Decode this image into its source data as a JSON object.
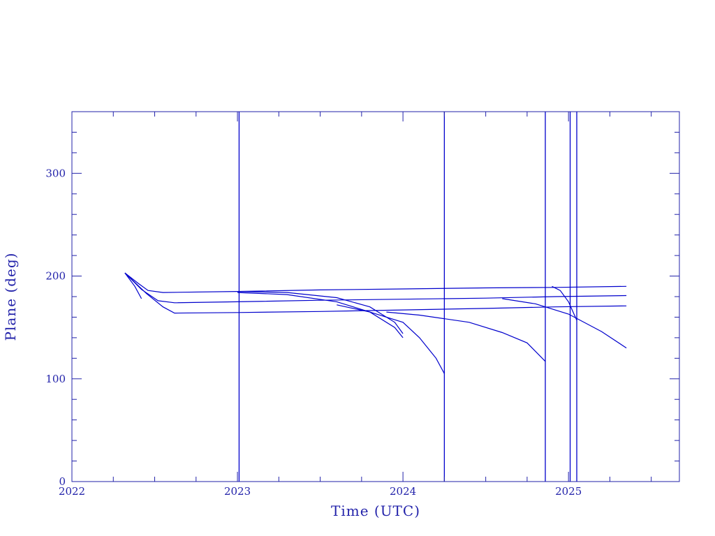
{
  "chart_data": {
    "type": "line",
    "title": "",
    "xlabel": "Time (UTC)",
    "ylabel": "Plane (deg)",
    "xlim": [
      2022.0,
      2025.67
    ],
    "ylim": [
      0,
      360
    ],
    "x_ticks": [
      2022,
      2023,
      2024,
      2025
    ],
    "y_ticks": [
      0,
      100,
      200,
      300
    ],
    "grid": false,
    "legend": "none",
    "color": "#0000cc",
    "vertical_lines_x": [
      2023.01,
      2024.25,
      2024.86,
      2025.01,
      2025.05
    ],
    "series": [
      {
        "x": [
          2022.32,
          2022.4,
          2022.46,
          2022.55,
          2023.0,
          2023.5,
          2024.0,
          2024.5,
          2024.92,
          2025.35
        ],
        "y": [
          203,
          193,
          186,
          184,
          185,
          186.5,
          187.5,
          188.5,
          189,
          190
        ]
      },
      {
        "x": [
          2022.32,
          2022.42,
          2022.52,
          2022.62,
          2023.0,
          2023.5,
          2024.0,
          2024.5,
          2024.92,
          2025.35
        ],
        "y": [
          203,
          187,
          176,
          174,
          175,
          176.5,
          177.5,
          178.5,
          180,
          181
        ]
      },
      {
        "x": [
          2022.32,
          2022.45,
          2022.55,
          2022.62,
          2023.0,
          2023.5,
          2024.0,
          2024.5,
          2024.92,
          2025.35
        ],
        "y": [
          203,
          183,
          170,
          164,
          164.5,
          165.5,
          167,
          168.5,
          170,
          171
        ]
      },
      {
        "x": [
          2022.32,
          2022.38,
          2022.42
        ],
        "y": [
          203,
          190,
          178
        ]
      },
      {
        "x": [
          2023.0,
          2023.3,
          2023.6,
          2023.8,
          2023.95,
          2024.0
        ],
        "y": [
          184,
          182,
          175,
          165,
          150,
          140
        ]
      },
      {
        "x": [
          2023.0,
          2023.3,
          2023.6,
          2023.8,
          2023.95,
          2024.0
        ],
        "y": [
          185,
          184,
          179,
          170,
          155,
          144
        ]
      },
      {
        "x": [
          2023.9,
          2024.1,
          2024.4,
          2024.6,
          2024.75,
          2024.86
        ],
        "y": [
          165,
          162,
          155,
          145,
          135,
          117
        ]
      },
      {
        "x": [
          2023.6,
          2023.8,
          2024.0,
          2024.1,
          2024.2,
          2024.25
        ],
        "y": [
          172,
          165,
          155,
          140,
          120,
          105
        ]
      },
      {
        "x": [
          2024.6,
          2024.8,
          2025.0,
          2025.2,
          2025.35
        ],
        "y": [
          178,
          173,
          163,
          146,
          130
        ]
      },
      {
        "x": [
          2024.9,
          2024.95,
          2025.0,
          2025.05
        ],
        "y": [
          190,
          186,
          175,
          157
        ]
      }
    ]
  }
}
